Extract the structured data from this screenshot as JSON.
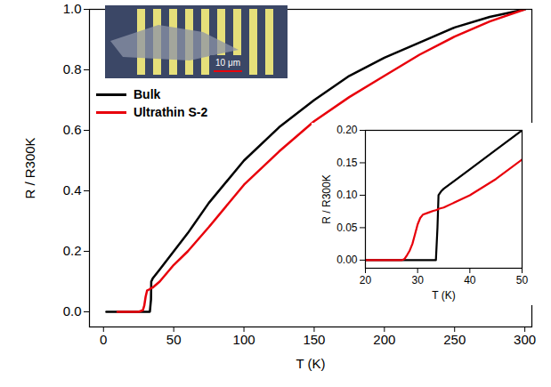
{
  "chart_data": [
    {
      "type": "line",
      "xlabel": "T (K)",
      "ylabel": "R / R300K",
      "xlim": [
        -10,
        305
      ],
      "ylim": [
        -0.05,
        1.0
      ],
      "xticks": [
        0,
        50,
        100,
        150,
        200,
        250,
        300
      ],
      "yticks": [
        {
          "value": 0,
          "label": "0.0"
        },
        0.2,
        0.4,
        0.6,
        0.8,
        {
          "value": 1,
          "label": "1.0"
        }
      ],
      "legend": "upper left",
      "annotations": [
        "10 μm"
      ],
      "x": [
        2,
        10,
        20,
        25,
        28,
        29,
        30,
        31,
        33,
        33.8,
        34,
        35,
        40,
        50,
        60,
        75,
        100,
        125,
        150,
        175,
        200,
        225,
        250,
        275,
        300
      ],
      "series": [
        {
          "name": "Bulk",
          "color": "#000000",
          "values": [
            0,
            0,
            0,
            0,
            0,
            0,
            0,
            0,
            0,
            0.04,
            0.1,
            0.11,
            0.14,
            0.2,
            0.26,
            0.36,
            0.5,
            0.61,
            0.7,
            0.78,
            0.84,
            0.89,
            0.94,
            0.975,
            1.0
          ]
        },
        {
          "name": "Ultrathin S-2",
          "color": "#e8000b",
          "values": [
            null,
            0,
            0,
            0,
            0.005,
            0.02,
            0.05,
            0.07,
            0.075,
            0.078,
            0.079,
            0.08,
            0.1,
            0.155,
            0.2,
            0.28,
            0.42,
            0.53,
            0.63,
            0.71,
            0.78,
            0.85,
            0.91,
            0.96,
            1.0
          ]
        }
      ]
    },
    {
      "type": "line",
      "xlabel": "T (K)",
      "ylabel": "R / R300K",
      "xlim": [
        20,
        50
      ],
      "ylim": [
        -0.0125,
        0.2
      ],
      "xticks": [
        20,
        30,
        40,
        50
      ],
      "yticks": [
        {
          "value": 0,
          "label": "0.00"
        },
        0.05,
        {
          "value": 0.1,
          "label": "0.10"
        },
        0.15,
        {
          "value": 0.2,
          "label": "0.20"
        }
      ],
      "x": [
        20,
        25,
        27,
        27.5,
        28,
        28.5,
        29,
        29.5,
        30,
        30.5,
        31,
        32,
        33,
        33.5,
        33.8,
        34,
        34.5,
        35,
        40,
        45,
        50
      ],
      "series": [
        {
          "name": "Bulk",
          "color": "#000000",
          "values": [
            0,
            0,
            0,
            0,
            0,
            0,
            0,
            0,
            0,
            0,
            0,
            0,
            0,
            0,
            0.05,
            0.1,
            0.106,
            0.11,
            0.14,
            0.17,
            0.2
          ]
        },
        {
          "name": "Ultrathin S-2",
          "color": "#e8000b",
          "values": [
            0,
            0,
            0,
            0.002,
            0.008,
            0.015,
            0.025,
            0.04,
            0.055,
            0.065,
            0.07,
            0.073,
            0.076,
            0.077,
            0.078,
            0.079,
            0.08,
            0.081,
            0.1,
            0.125,
            0.155
          ]
        }
      ]
    }
  ]
}
